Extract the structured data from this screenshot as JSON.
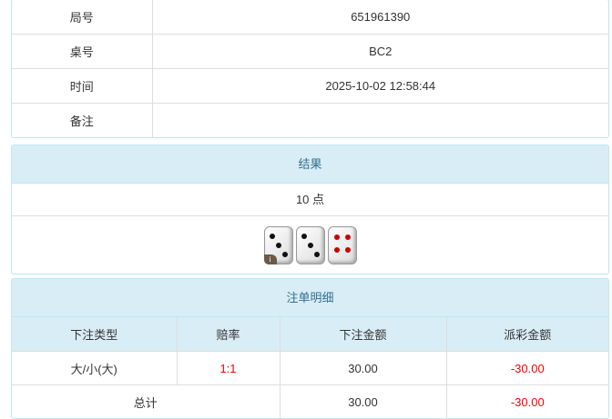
{
  "info": {
    "rows": [
      {
        "label": "局号",
        "value": "651961390"
      },
      {
        "label": "桌号",
        "value": "BC2"
      },
      {
        "label": "时间",
        "value": "2025-10-02 12:58:44"
      },
      {
        "label": "备注",
        "value": ""
      }
    ]
  },
  "result": {
    "title": "结果",
    "points": "10 点",
    "dice": [
      3,
      3,
      4
    ],
    "info_badge": "i"
  },
  "bets": {
    "title": "注单明细",
    "headers": [
      "下注类型",
      "赔率",
      "下注金额",
      "派彩金额"
    ],
    "rows": [
      {
        "type": "大/小(大)",
        "odds": "1:1",
        "amount": "30.00",
        "payout": "-30.00"
      }
    ],
    "total": {
      "label": "总计",
      "amount": "30.00",
      "payout": "-30.00"
    }
  },
  "colors": {
    "header_bg": "#d9edf7",
    "header_text": "#31708f",
    "negative": "#ff0000"
  }
}
